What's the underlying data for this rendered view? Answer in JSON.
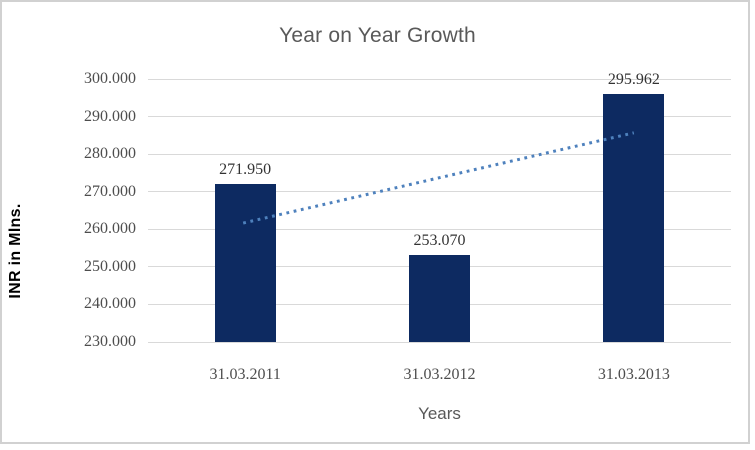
{
  "chart_data": {
    "type": "bar",
    "title": "Year on Year Growth",
    "xlabel": "Years",
    "ylabel": "INR in Mlns.",
    "categories": [
      "31.03.2011",
      "31.03.2012",
      "31.03.2013"
    ],
    "values": [
      271.95,
      253.07,
      295.962
    ],
    "data_labels": [
      "271.950",
      "253.070",
      "295.962"
    ],
    "y_ticks": [
      "300.000",
      "290.000",
      "280.000",
      "270.000",
      "260.000",
      "250.000",
      "240.000",
      "230.000"
    ],
    "ylim": [
      230,
      300
    ],
    "grid": true,
    "legend": "none",
    "trendline": {
      "style": "dotted",
      "start_value": 261.66,
      "end_value": 285.67,
      "color": "#4e81bd"
    },
    "colors": {
      "bar": "#0d2a61",
      "gridline": "#d9d9d9",
      "frame_border": "#d1d1d1",
      "title_text": "#595959",
      "tick_text": "#4d4d4d",
      "data_label_text": "#333333",
      "axis_title_text": "#000000",
      "xaxis_title_text": "#595959"
    }
  }
}
